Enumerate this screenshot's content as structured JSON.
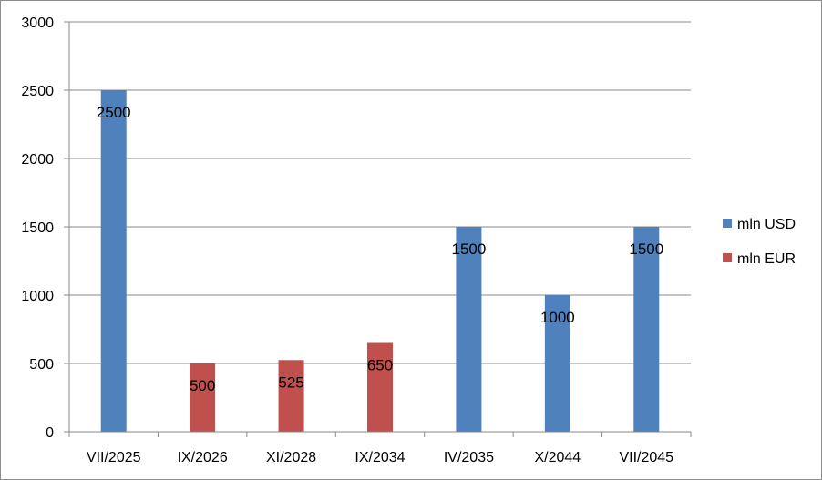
{
  "chart_data": {
    "type": "bar",
    "categories": [
      "VII/2025",
      "IX/2026",
      "XI/2028",
      "IX/2034",
      "IV/2035",
      "X/2044",
      "VII/2045"
    ],
    "series": [
      {
        "name": "mln USD",
        "color": "#4f81bd",
        "values": [
          2500,
          null,
          null,
          null,
          1500,
          1000,
          1500
        ]
      },
      {
        "name": "mln EUR",
        "color": "#c0504d",
        "values": [
          null,
          500,
          525,
          650,
          null,
          null,
          null
        ]
      }
    ],
    "ylim": [
      0,
      3000
    ],
    "yticks": [
      0,
      500,
      1000,
      1500,
      2000,
      2500,
      3000
    ],
    "grid": true,
    "legend_position": "right",
    "data_labels": true,
    "title": "",
    "xlabel": "",
    "ylabel": ""
  }
}
